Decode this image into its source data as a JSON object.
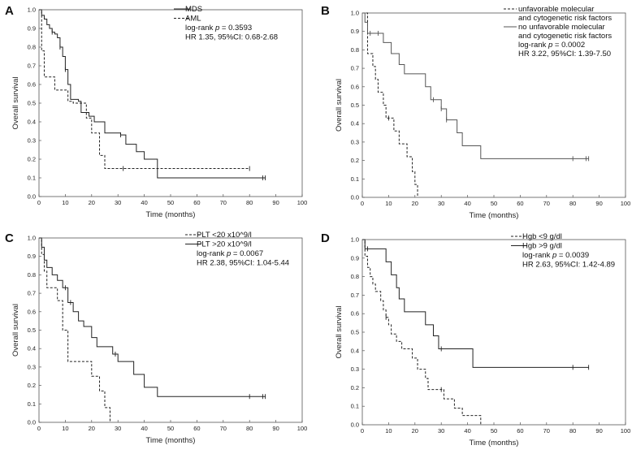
{
  "chart_data": [
    {
      "type": "line",
      "panel": "A",
      "xlabel": "Time (months)",
      "ylabel": "Overall survival",
      "xlim": [
        0,
        100
      ],
      "ylim": [
        0,
        1.0
      ],
      "xticks": [
        0,
        10,
        20,
        30,
        40,
        50,
        60,
        70,
        80,
        90,
        100
      ],
      "yticks": [
        0.0,
        0.1,
        0.2,
        0.3,
        0.4,
        0.5,
        0.6,
        0.7,
        0.8,
        0.9,
        1.0
      ],
      "legend_position": "top-right",
      "series": [
        {
          "name": "MDS",
          "style": "solid",
          "color": "#222222",
          "steps": [
            [
              0,
              1.0
            ],
            [
              1,
              0.97
            ],
            [
              2,
              0.95
            ],
            [
              3,
              0.92
            ],
            [
              4,
              0.9
            ],
            [
              5,
              0.88
            ],
            [
              6,
              0.87
            ],
            [
              7,
              0.85
            ],
            [
              8,
              0.8
            ],
            [
              9,
              0.75
            ],
            [
              10,
              0.68
            ],
            [
              11,
              0.6
            ],
            [
              12,
              0.52
            ],
            [
              15,
              0.51
            ],
            [
              16,
              0.45
            ],
            [
              19,
              0.43
            ],
            [
              21,
              0.4
            ],
            [
              25,
              0.34
            ],
            [
              31,
              0.33
            ],
            [
              33,
              0.28
            ],
            [
              37,
              0.24
            ],
            [
              40,
              0.2
            ],
            [
              45,
              0.1
            ],
            [
              86,
              0.1
            ]
          ],
          "censored": [
            [
              5,
              0.88
            ],
            [
              8,
              0.8
            ],
            [
              10,
              0.68
            ],
            [
              31,
              0.33
            ],
            [
              85,
              0.1
            ],
            [
              86,
              0.1
            ]
          ]
        },
        {
          "name": "AML",
          "style": "dashed",
          "color": "#222222",
          "steps": [
            [
              0,
              1.0
            ],
            [
              1,
              0.78
            ],
            [
              2,
              0.64
            ],
            [
              6,
              0.57
            ],
            [
              11,
              0.51
            ],
            [
              13,
              0.5
            ],
            [
              18,
              0.42
            ],
            [
              20,
              0.34
            ],
            [
              23,
              0.22
            ],
            [
              25,
              0.15
            ],
            [
              80,
              0.15
            ]
          ],
          "censored": [
            [
              32,
              0.15
            ],
            [
              80,
              0.15
            ]
          ]
        }
      ],
      "annotations": [
        "log-rank p = 0.3593",
        "HR 1.35, 95%CI: 0.68-2.68"
      ]
    },
    {
      "type": "line",
      "panel": "B",
      "xlabel": "Time (months)",
      "ylabel": "Overall survival",
      "xlim": [
        0,
        100
      ],
      "ylim": [
        0,
        1.0
      ],
      "xticks": [
        0,
        10,
        20,
        30,
        40,
        50,
        60,
        70,
        80,
        90,
        100
      ],
      "yticks": [
        0.0,
        0.1,
        0.2,
        0.3,
        0.4,
        0.5,
        0.6,
        0.7,
        0.8,
        0.9,
        1.0
      ],
      "legend_position": "top-right",
      "series": [
        {
          "name": "unfavorable molecular and cytogenetic risk factors",
          "style": "dashed",
          "color": "#222222",
          "steps": [
            [
              0,
              1.0
            ],
            [
              2,
              0.78
            ],
            [
              4,
              0.71
            ],
            [
              5,
              0.64
            ],
            [
              6,
              0.57
            ],
            [
              8,
              0.5
            ],
            [
              9,
              0.43
            ],
            [
              12,
              0.36
            ],
            [
              14,
              0.29
            ],
            [
              17,
              0.22
            ],
            [
              19,
              0.14
            ],
            [
              20,
              0.07
            ],
            [
              21,
              0.0
            ]
          ],
          "censored": [
            [
              10,
              0.43
            ]
          ]
        },
        {
          "name": "no unfavorable molecular and cytogenetic risk factors",
          "style": "solid",
          "color": "#555555",
          "steps": [
            [
              0,
              1.0
            ],
            [
              1,
              0.95
            ],
            [
              2,
              0.89
            ],
            [
              8,
              0.84
            ],
            [
              11,
              0.78
            ],
            [
              14,
              0.72
            ],
            [
              16,
              0.67
            ],
            [
              24,
              0.6
            ],
            [
              26,
              0.53
            ],
            [
              30,
              0.48
            ],
            [
              32,
              0.42
            ],
            [
              36,
              0.35
            ],
            [
              38,
              0.28
            ],
            [
              45,
              0.21
            ],
            [
              86,
              0.21
            ]
          ],
          "censored": [
            [
              3,
              0.89
            ],
            [
              6,
              0.89
            ],
            [
              27,
              0.53
            ],
            [
              30,
              0.48
            ],
            [
              32,
              0.42
            ],
            [
              80,
              0.21
            ],
            [
              85,
              0.21
            ],
            [
              86,
              0.21
            ]
          ]
        }
      ],
      "annotations": [
        "log-rank p = 0.0002",
        "HR 3.22, 95%CI: 1.39-7.50"
      ]
    },
    {
      "type": "line",
      "panel": "C",
      "xlabel": "Time (months)",
      "ylabel": "Overall survival",
      "xlim": [
        0,
        100
      ],
      "ylim": [
        0,
        1.0
      ],
      "xticks": [
        0,
        10,
        20,
        30,
        40,
        50,
        60,
        70,
        80,
        90,
        100
      ],
      "yticks": [
        0.0,
        0.1,
        0.2,
        0.3,
        0.4,
        0.5,
        0.6,
        0.7,
        0.8,
        0.9,
        1.0
      ],
      "legend_position": "top-right",
      "series": [
        {
          "name": "PLT <20 x10^9/l",
          "style": "dashed",
          "color": "#222222",
          "steps": [
            [
              0,
              1.0
            ],
            [
              1,
              0.91
            ],
            [
              2,
              0.82
            ],
            [
              3,
              0.73
            ],
            [
              7,
              0.66
            ],
            [
              9,
              0.5
            ],
            [
              11,
              0.33
            ],
            [
              20,
              0.25
            ],
            [
              23,
              0.17
            ],
            [
              25,
              0.08
            ],
            [
              27,
              0.0
            ]
          ],
          "censored": []
        },
        {
          "name": "PLT >20 x10^9/l",
          "style": "solid",
          "color": "#222222",
          "steps": [
            [
              0,
              1.0
            ],
            [
              1,
              0.95
            ],
            [
              2,
              0.88
            ],
            [
              3,
              0.84
            ],
            [
              5,
              0.8
            ],
            [
              7,
              0.77
            ],
            [
              9,
              0.73
            ],
            [
              11,
              0.65
            ],
            [
              13,
              0.6
            ],
            [
              15,
              0.55
            ],
            [
              17,
              0.52
            ],
            [
              20,
              0.46
            ],
            [
              22,
              0.41
            ],
            [
              28,
              0.37
            ],
            [
              30,
              0.33
            ],
            [
              36,
              0.26
            ],
            [
              40,
              0.19
            ],
            [
              45,
              0.14
            ],
            [
              86,
              0.14
            ]
          ],
          "censored": [
            [
              10,
              0.73
            ],
            [
              12,
              0.65
            ],
            [
              29,
              0.37
            ],
            [
              80,
              0.14
            ],
            [
              85,
              0.14
            ],
            [
              86,
              0.14
            ]
          ]
        }
      ],
      "annotations": [
        "log-rank p = 0.0067",
        "HR 2.38, 95%CI: 1.04-5.44"
      ]
    },
    {
      "type": "line",
      "panel": "D",
      "xlabel": "Time (months)",
      "ylabel": "Overall survival",
      "xlim": [
        0,
        100
      ],
      "ylim": [
        0,
        1.0
      ],
      "xticks": [
        0,
        10,
        20,
        30,
        40,
        50,
        60,
        70,
        80,
        90,
        100
      ],
      "yticks": [
        0.0,
        0.1,
        0.2,
        0.3,
        0.4,
        0.5,
        0.6,
        0.7,
        0.8,
        0.9,
        1.0
      ],
      "legend_position": "top-right",
      "series": [
        {
          "name": "Hgb <9 g/dl",
          "style": "dashed",
          "color": "#222222",
          "steps": [
            [
              0,
              1.0
            ],
            [
              1,
              0.91
            ],
            [
              2,
              0.85
            ],
            [
              3,
              0.8
            ],
            [
              4,
              0.76
            ],
            [
              5,
              0.72
            ],
            [
              7,
              0.67
            ],
            [
              8,
              0.62
            ],
            [
              9,
              0.58
            ],
            [
              10,
              0.54
            ],
            [
              11,
              0.49
            ],
            [
              13,
              0.45
            ],
            [
              15,
              0.41
            ],
            [
              19,
              0.36
            ],
            [
              21,
              0.3
            ],
            [
              24,
              0.25
            ],
            [
              25,
              0.19
            ],
            [
              31,
              0.14
            ],
            [
              35,
              0.09
            ],
            [
              38,
              0.05
            ],
            [
              45,
              0.0
            ]
          ],
          "censored": [
            [
              9,
              0.58
            ],
            [
              30,
              0.19
            ]
          ]
        },
        {
          "name": "Hgb >9 g/dl",
          "style": "solid",
          "color": "#222222",
          "steps": [
            [
              0,
              1.0
            ],
            [
              1,
              0.95
            ],
            [
              9,
              0.88
            ],
            [
              11,
              0.81
            ],
            [
              13,
              0.74
            ],
            [
              14,
              0.68
            ],
            [
              16,
              0.61
            ],
            [
              24,
              0.54
            ],
            [
              27,
              0.48
            ],
            [
              29,
              0.41
            ],
            [
              42,
              0.31
            ],
            [
              86,
              0.31
            ]
          ],
          "censored": [
            [
              2,
              0.95
            ],
            [
              30,
              0.41
            ],
            [
              80,
              0.31
            ],
            [
              86,
              0.31
            ]
          ]
        }
      ],
      "annotations": [
        "log-rank p = 0.0039",
        "HR 2.63, 95%CI: 1.42-4.89"
      ]
    }
  ]
}
